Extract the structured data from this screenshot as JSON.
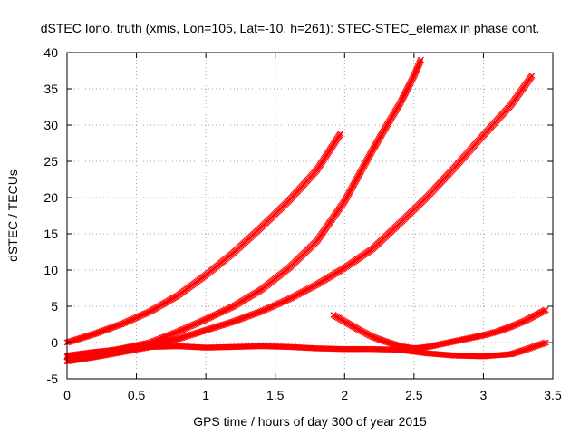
{
  "chart_data": {
    "type": "scatter",
    "title": "dSTEC Iono. truth (xmis, Lon=105, Lat=-10, h=261): STEC-STEC_elemax in phase cont.",
    "xlabel": "GPS time / hours of day 300 of year 2015",
    "ylabel": "dSTEC  / TECUs",
    "xlim": [
      0,
      3.5
    ],
    "ylim": [
      -5,
      40
    ],
    "xticks": [
      0,
      0.5,
      1,
      1.5,
      2,
      2.5,
      3,
      3.5
    ],
    "xtick_labels": [
      "0",
      "0.5",
      "1",
      "1.5",
      "2",
      "2.5",
      "3",
      "3.5"
    ],
    "yticks": [
      -5,
      0,
      5,
      10,
      15,
      20,
      25,
      30,
      35,
      40
    ],
    "ytick_labels": [
      "-5",
      "0",
      "5",
      "10",
      "15",
      "20",
      "25",
      "30",
      "35",
      "40"
    ],
    "grid": true,
    "marker_color": "#ff0000",
    "marker": "cross",
    "series": [
      {
        "x": [
          0.0,
          0.2,
          0.4,
          0.6,
          0.8,
          1.0,
          1.2,
          1.4,
          1.6,
          1.8,
          1.97
        ],
        "y": [
          0.0,
          1.2,
          2.6,
          4.3,
          6.5,
          9.3,
          12.4,
          15.9,
          19.6,
          23.8,
          28.8
        ]
      },
      {
        "x": [
          0.0,
          0.2,
          0.4,
          0.6,
          0.8,
          1.0,
          1.2,
          1.4,
          1.6,
          1.8,
          2.0,
          2.1,
          2.2,
          2.3,
          2.4,
          2.5,
          2.55
        ],
        "y": [
          -2.0,
          -1.5,
          -0.8,
          0.0,
          1.5,
          3.2,
          5.0,
          7.3,
          10.3,
          14.0,
          19.5,
          23.0,
          26.5,
          29.8,
          33.0,
          36.8,
          39.0
        ]
      },
      {
        "x": [
          0.0,
          0.2,
          0.4,
          0.6,
          0.8,
          1.0,
          1.2,
          1.4,
          1.6,
          1.8,
          2.0,
          2.2,
          2.4,
          2.6,
          2.8,
          3.0,
          3.2,
          3.35
        ],
        "y": [
          -1.8,
          -1.3,
          -0.9,
          -0.3,
          0.5,
          1.7,
          2.9,
          4.3,
          6.0,
          8.0,
          10.3,
          12.9,
          16.5,
          20.2,
          24.3,
          28.6,
          32.8,
          36.8
        ]
      },
      {
        "x": [
          0.0,
          0.2,
          0.4,
          0.6,
          0.8,
          1.0,
          1.2,
          1.4,
          1.6,
          1.8,
          2.0,
          2.2,
          2.4,
          2.6,
          2.8,
          3.0,
          3.2,
          3.3,
          3.45
        ],
        "y": [
          -2.6,
          -2.0,
          -1.3,
          -0.6,
          -0.5,
          -0.7,
          -0.6,
          -0.5,
          -0.6,
          -0.8,
          -0.9,
          -0.9,
          -1.0,
          -1.5,
          -1.8,
          -1.9,
          -1.6,
          -1.0,
          0.0
        ]
      },
      {
        "x": [
          1.92,
          2.0,
          2.1,
          2.2,
          2.3,
          2.4,
          2.5,
          2.6,
          2.7,
          2.8,
          2.9,
          3.0,
          3.1,
          3.2,
          3.3,
          3.45
        ],
        "y": [
          3.8,
          2.9,
          1.8,
          0.8,
          0.1,
          -0.5,
          -0.8,
          -0.6,
          -0.2,
          0.2,
          0.6,
          1.0,
          1.5,
          2.2,
          3.0,
          4.5
        ]
      }
    ]
  }
}
